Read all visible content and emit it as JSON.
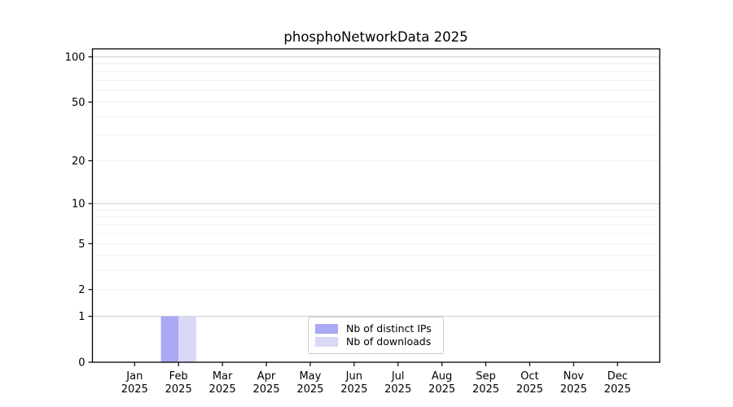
{
  "figure": {
    "background": "#ffffff"
  },
  "chart_data": {
    "type": "bar",
    "title": "phosphoNetworkData 2025",
    "categories": [
      "Jan",
      "Feb",
      "Mar",
      "Apr",
      "May",
      "Jun",
      "Jul",
      "Aug",
      "Sep",
      "Oct",
      "Nov",
      "Dec"
    ],
    "category_year": "2025",
    "series": [
      {
        "name": "Nb of distinct IPs",
        "color": "#a9a9f4",
        "values": [
          0,
          1,
          0,
          0,
          0,
          0,
          0,
          0,
          0,
          0,
          0,
          0
        ]
      },
      {
        "name": "Nb of downloads",
        "color": "#d9d9f7",
        "values": [
          0,
          1,
          0,
          0,
          0,
          0,
          0,
          0,
          0,
          0,
          0,
          0
        ]
      }
    ],
    "yscale": "log1p",
    "ylim": [
      0,
      113
    ],
    "yticks": [
      0,
      1,
      2,
      5,
      10,
      20,
      50,
      100
    ],
    "yticks_emphasis": [
      1,
      10,
      100
    ],
    "yminor": [
      3,
      4,
      6,
      7,
      8,
      9,
      30,
      40,
      60,
      70,
      80,
      90
    ],
    "grid": true,
    "legend_position": "bottom-center",
    "colors": {
      "axis": "#000000",
      "tick_text": "#000000",
      "grid_emphasis": "#c9c9c9",
      "grid_faint": "#efefef"
    }
  }
}
